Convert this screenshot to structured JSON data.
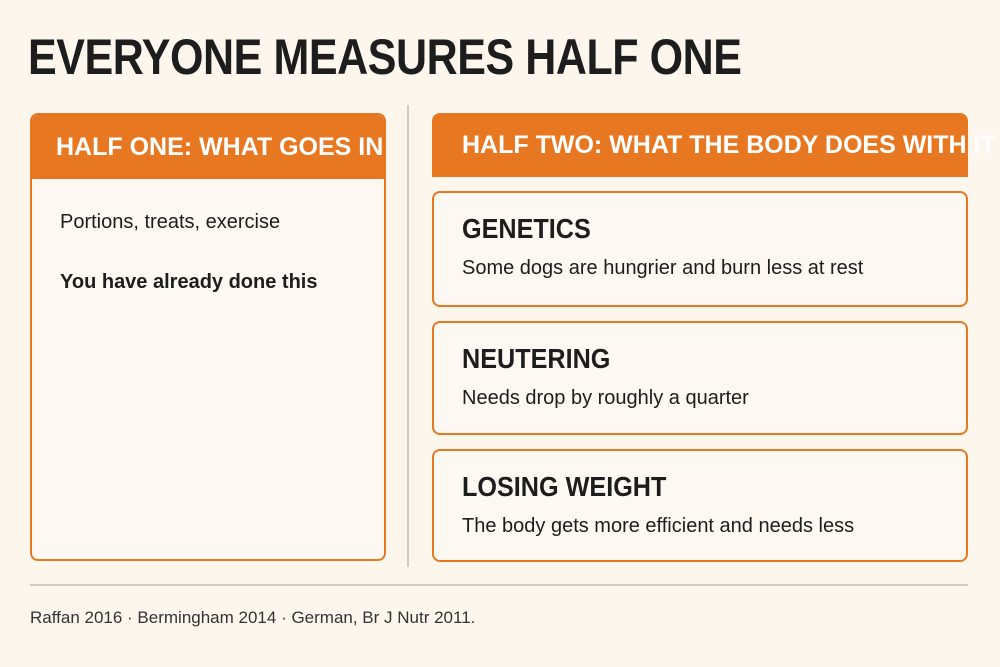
{
  "title": "EVERYONE MEASURES HALF ONE",
  "left_panel": {
    "header": "HALF ONE: WHAT GOES IN",
    "items": [
      "Portions, treats, exercise",
      "You have already done this"
    ]
  },
  "right_panel": {
    "header": "HALF TWO: WHAT THE BODY DOES WITH IT",
    "cards": [
      {
        "title": "GENETICS",
        "text": "Some dogs are hungrier and burn less at rest"
      },
      {
        "title": "NEUTERING",
        "text": "Needs drop by roughly a quarter"
      },
      {
        "title": "LOSING WEIGHT",
        "text": "The body gets more efficient and needs less"
      }
    ]
  },
  "sources": "Raffan 2016 · Bermingham 2014 · German, Br J Nutr 2011."
}
